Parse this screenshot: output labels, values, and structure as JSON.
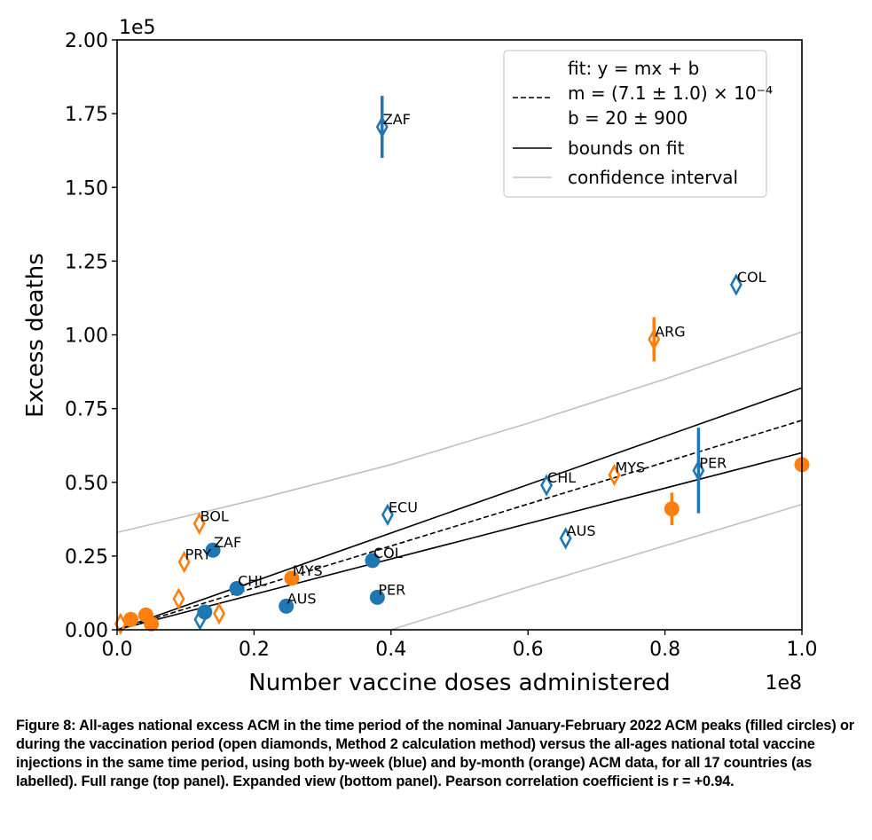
{
  "chart_data": {
    "type": "scatter",
    "title": "",
    "xlabel": "Number vaccine doses administered",
    "ylabel": "Excess deaths",
    "x_multiplier": "1e8",
    "y_multiplier": "1e5",
    "xlim": [
      0,
      100000000
    ],
    "ylim": [
      0,
      200000
    ],
    "x_ticks": [
      0,
      20000000,
      40000000,
      60000000,
      80000000,
      100000000
    ],
    "x_tick_labels": [
      "0.0",
      "0.2",
      "0.4",
      "0.6",
      "0.8",
      "1.0"
    ],
    "y_ticks": [
      0,
      25000,
      50000,
      75000,
      100000,
      125000,
      150000,
      175000,
      200000
    ],
    "y_tick_labels": [
      "0.00",
      "0.25",
      "0.50",
      "0.75",
      "1.00",
      "1.25",
      "1.50",
      "1.75",
      "2.00"
    ],
    "grid": false,
    "colors": {
      "blue": "#1f77b4",
      "orange": "#ff7f0e",
      "fit": "#000000",
      "confidence": "#c0c0c0"
    },
    "fit": {
      "m": 0.00071,
      "b": 20,
      "m_low": 0.0006,
      "m_high": 0.00082
    },
    "confidence_interval": {
      "upper": [
        [
          0,
          33000
        ],
        [
          20000000,
          44000
        ],
        [
          40000000,
          56000
        ],
        [
          60000000,
          70000
        ],
        [
          80000000,
          85000
        ],
        [
          100000000,
          101000
        ]
      ],
      "lower": [
        [
          40000000,
          0
        ],
        [
          60000000,
          14500
        ],
        [
          80000000,
          28500
        ],
        [
          100000000,
          42500
        ]
      ]
    },
    "series": [
      {
        "name": "by-week ACM peak (filled circles)",
        "color": "blue",
        "marker": "circle",
        "points": [
          {
            "label": "ZAF",
            "x": 14000000,
            "y": 27000
          },
          {
            "label": "CHL",
            "x": 17500000,
            "y": 14000
          },
          {
            "label": "",
            "x": 12800000,
            "y": 6000
          },
          {
            "label": "MYS",
            "x": 25500000,
            "y": 17500,
            "color": "orange"
          },
          {
            "label": "AUS",
            "x": 24700000,
            "y": 8000
          },
          {
            "label": "COL",
            "x": 37300000,
            "y": 23500
          },
          {
            "label": "PER",
            "x": 38000000,
            "y": 11000
          }
        ]
      },
      {
        "name": "by-month ACM peak (filled circles)",
        "color": "orange",
        "marker": "circle",
        "points": [
          {
            "label": "",
            "x": 2000000,
            "y": 3500
          },
          {
            "label": "",
            "x": 4200000,
            "y": 5000
          },
          {
            "label": "",
            "x": 5000000,
            "y": 2000
          },
          {
            "label": "",
            "x": 81000000,
            "y": 41000,
            "err": 5500
          },
          {
            "label": "",
            "x": 100000000,
            "y": 56000
          }
        ]
      },
      {
        "name": "by-week vaccination period (open diamonds)",
        "color": "blue",
        "marker": "diamond",
        "points": [
          {
            "label": "ZAF",
            "x": 38700000,
            "y": 170500,
            "err": 10500
          },
          {
            "label": "COL",
            "x": 90400000,
            "y": 117000
          },
          {
            "label": "ECU",
            "x": 39500000,
            "y": 39000
          },
          {
            "label": "CHL",
            "x": 62700000,
            "y": 49000
          },
          {
            "label": "AUS",
            "x": 65500000,
            "y": 31000
          },
          {
            "label": "PER",
            "x": 84900000,
            "y": 54000,
            "err": 14500
          },
          {
            "label": "",
            "x": 12100000,
            "y": 3500
          }
        ]
      },
      {
        "name": "by-month vaccination period (open diamonds)",
        "color": "orange",
        "marker": "diamond",
        "points": [
          {
            "label": "ARG",
            "x": 78400000,
            "y": 98500,
            "err": 7500
          },
          {
            "label": "MYS",
            "x": 72600000,
            "y": 52500
          },
          {
            "label": "BOL",
            "x": 12000000,
            "y": 36000
          },
          {
            "label": "PRY",
            "x": 9800000,
            "y": 23000
          },
          {
            "label": "",
            "x": 9000000,
            "y": 10500
          },
          {
            "label": "",
            "x": 14900000,
            "y": 5500
          },
          {
            "label": "",
            "x": 500000,
            "y": 2000
          }
        ]
      }
    ],
    "legend": {
      "placement": "top-right",
      "entries": [
        {
          "style": "none",
          "label": "fit: y = mx + b"
        },
        {
          "style": "dashed",
          "label": "m = (7.1 ± 1.0) × 10⁻⁴"
        },
        {
          "style": "none",
          "label": "b = 20 ± 900"
        },
        {
          "style": "solid-black",
          "label": "bounds on fit"
        },
        {
          "style": "solid-gray",
          "label": "confidence interval"
        }
      ]
    }
  },
  "caption": "Figure 8: All-ages national excess ACM in the time period of the nominal January-February 2022 ACM peaks (filled circles) or during the vaccination period (open diamonds, Method 2 calculation method) versus the all-ages national total vaccine injections in the same time period, using both by-week (blue) and by-month (orange) ACM data, for all 17 countries (as labelled). Full range (top panel). Expanded view (bottom panel). Pearson correlation coefficient is r = +0.94."
}
